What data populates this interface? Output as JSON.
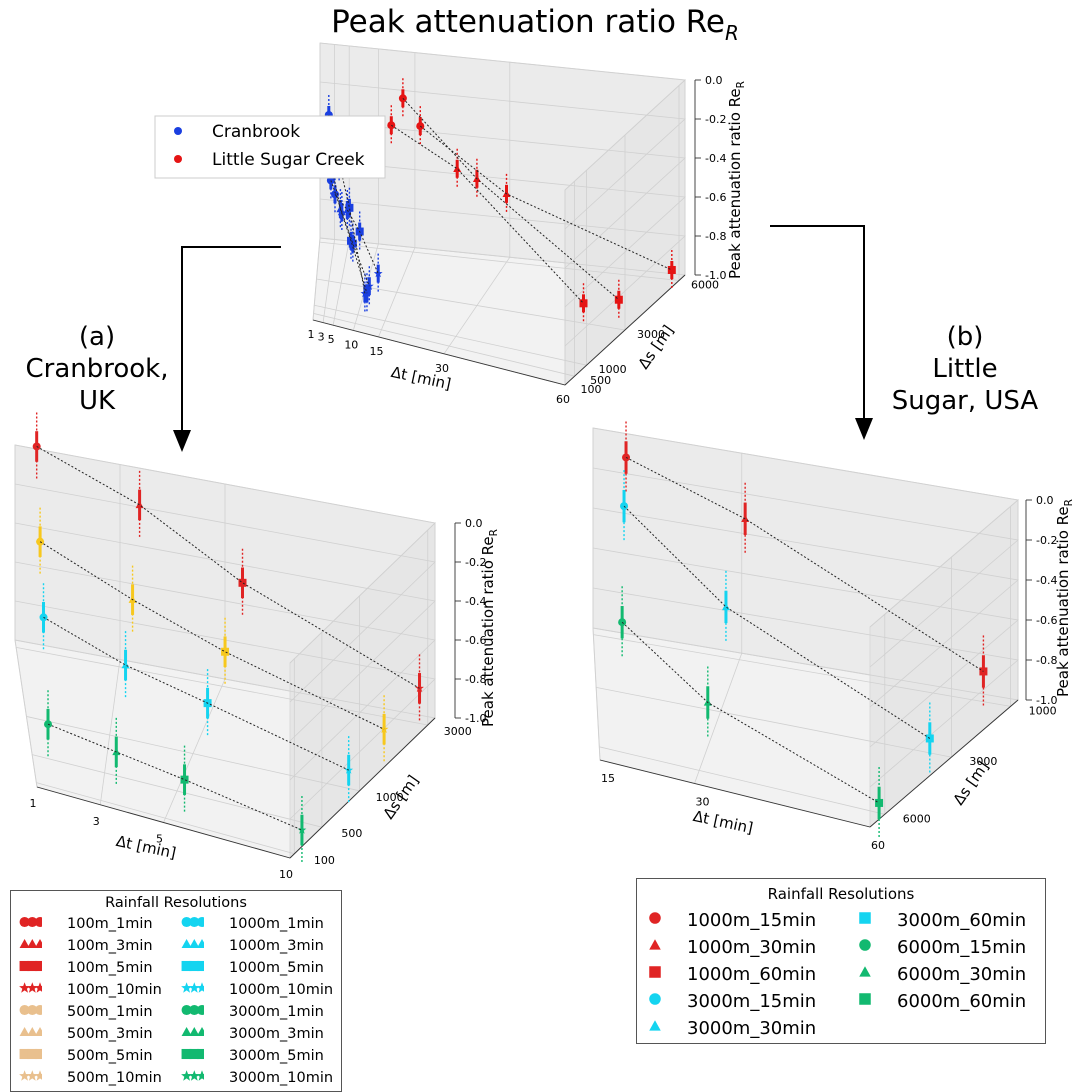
{
  "figure_title": "Peak attenuation ratio Re",
  "figure_title_sub": "R",
  "panel_labels": {
    "a": [
      "(a)",
      "Cranbrook,",
      "UK"
    ],
    "b": [
      "(b)",
      "Little",
      "Sugar, USA"
    ]
  },
  "colors": {
    "cranbrook": "#1a3fe0",
    "little_sugar": "#e51414",
    "res_100m": "#e02424",
    "res_500m": "#e9c08e",
    "res_1000m": "#14d4f0",
    "res_3000m": "#12b970",
    "res_3000m_b": "#14d4f0",
    "res_6000m": "#12b970",
    "yellow_500m": "#f7c81e"
  },
  "chart_data": [
    {
      "id": "top",
      "type": "scatter",
      "title": "Peak attenuation ratio Re_R",
      "xlabel": "Δt [min]",
      "ylabel": "Δs [m]",
      "zlabel": "Peak attenuation ratio Re_R",
      "x_ticks": [
        "1",
        "3",
        "5",
        "10",
        "15",
        "30",
        "60"
      ],
      "y_ticks": [
        "100",
        "500",
        "1000",
        "3000",
        "6000"
      ],
      "z_ticks": [
        "0.0",
        "-0.2",
        "-0.4",
        "-0.6",
        "-0.8",
        "-1.0"
      ],
      "zlim": [
        -1.0,
        0.0
      ],
      "legend": [
        "Cranbrook",
        "Little Sugar Creek"
      ],
      "series": [
        {
          "name": "Cranbrook",
          "points": [
            {
              "x": 1,
              "y": 100,
              "z": 0.05,
              "m": "o"
            },
            {
              "x": 3,
              "y": 100,
              "z": -0.18,
              "m": "^"
            },
            {
              "x": 5,
              "y": 100,
              "z": -0.4,
              "m": "s"
            },
            {
              "x": 10,
              "y": 100,
              "z": -0.82,
              "m": "*"
            },
            {
              "x": 1,
              "y": 500,
              "z": -0.2,
              "m": "o"
            },
            {
              "x": 3,
              "y": 500,
              "z": -0.45,
              "m": "^"
            },
            {
              "x": 5,
              "y": 500,
              "z": -0.6,
              "m": "s"
            },
            {
              "x": 10,
              "y": 500,
              "z": -0.85,
              "m": "*"
            },
            {
              "x": 1,
              "y": 1000,
              "z": -0.35,
              "m": "o"
            },
            {
              "x": 3,
              "y": 1000,
              "z": -0.5,
              "m": "^"
            },
            {
              "x": 5,
              "y": 1000,
              "z": -0.65,
              "m": "s"
            },
            {
              "x": 10,
              "y": 1000,
              "z": -0.85,
              "m": "*"
            },
            {
              "x": 1,
              "y": 3000,
              "z": -0.55,
              "m": "o"
            },
            {
              "x": 3,
              "y": 3000,
              "z": -0.62,
              "m": "^"
            },
            {
              "x": 5,
              "y": 3000,
              "z": -0.72,
              "m": "s"
            },
            {
              "x": 10,
              "y": 3000,
              "z": -0.92,
              "m": "*"
            }
          ]
        },
        {
          "name": "Little Sugar Creek",
          "points": [
            {
              "x": 15,
              "y": 1000,
              "z": 0.0,
              "m": "o"
            },
            {
              "x": 30,
              "y": 1000,
              "z": -0.15,
              "m": "^"
            },
            {
              "x": 60,
              "y": 1000,
              "z": -0.7,
              "m": "s"
            },
            {
              "x": 15,
              "y": 3000,
              "z": 0.0,
              "m": "o"
            },
            {
              "x": 30,
              "y": 3000,
              "z": -0.35,
              "m": "^"
            },
            {
              "x": 60,
              "y": 3000,
              "z": -0.85,
              "m": "s"
            },
            {
              "x": 15,
              "y": 6000,
              "z": -0.35,
              "m": "o"
            },
            {
              "x": 30,
              "y": 6000,
              "z": -0.65,
              "m": "^"
            },
            {
              "x": 60,
              "y": 6000,
              "z": -0.95,
              "m": "s"
            }
          ]
        }
      ]
    },
    {
      "id": "a",
      "type": "scatter",
      "xlabel": "Δt [min]",
      "ylabel": "Δs [m]",
      "zlabel": "Peak attenuation ratio Re_R",
      "x_ticks": [
        "1",
        "3",
        "5",
        "10"
      ],
      "y_ticks": [
        "100",
        "500",
        "1000",
        "3000"
      ],
      "z_ticks": [
        "0.0",
        "-0.2",
        "-0.4",
        "-0.6",
        "-0.8",
        "-1.0"
      ],
      "zlim": [
        -1.0,
        0.0
      ],
      "points": [
        {
          "res": "100m",
          "x": 1,
          "y": 100,
          "z": 0.05,
          "m": "o"
        },
        {
          "res": "100m",
          "x": 3,
          "y": 100,
          "z": -0.15,
          "m": "^"
        },
        {
          "res": "100m",
          "x": 5,
          "y": 100,
          "z": -0.45,
          "m": "s"
        },
        {
          "res": "100m",
          "x": 10,
          "y": 100,
          "z": -0.82,
          "m": "*"
        },
        {
          "res": "500m",
          "x": 1,
          "y": 500,
          "z": -0.25,
          "m": "o"
        },
        {
          "res": "500m",
          "x": 3,
          "y": 500,
          "z": -0.45,
          "m": "^"
        },
        {
          "res": "500m",
          "x": 5,
          "y": 500,
          "z": -0.62,
          "m": "s"
        },
        {
          "res": "500m",
          "x": 10,
          "y": 500,
          "z": -0.85,
          "m": "*"
        },
        {
          "res": "1000m",
          "x": 1,
          "y": 1000,
          "z": -0.45,
          "m": "o"
        },
        {
          "res": "1000m",
          "x": 3,
          "y": 1000,
          "z": -0.6,
          "m": "^"
        },
        {
          "res": "1000m",
          "x": 5,
          "y": 1000,
          "z": -0.7,
          "m": "s"
        },
        {
          "res": "1000m",
          "x": 10,
          "y": 1000,
          "z": -0.88,
          "m": "*"
        },
        {
          "res": "3000m",
          "x": 1,
          "y": 3000,
          "z": -0.75,
          "m": "o"
        },
        {
          "res": "3000m",
          "x": 3,
          "y": 3000,
          "z": -0.8,
          "m": "^"
        },
        {
          "res": "3000m",
          "x": 5,
          "y": 3000,
          "z": -0.85,
          "m": "s"
        },
        {
          "res": "3000m",
          "x": 10,
          "y": 3000,
          "z": -0.95,
          "m": "*"
        }
      ]
    },
    {
      "id": "b",
      "type": "scatter",
      "xlabel": "Δt [min]",
      "ylabel": "Δs [m]",
      "zlabel": "Peak attenuation ratio Re_R",
      "x_ticks": [
        "15",
        "30",
        "60"
      ],
      "y_ticks": [
        "1000",
        "3000",
        "6000"
      ],
      "z_ticks": [
        "0.0",
        "-0.2",
        "-0.4",
        "-0.6",
        "-0.8",
        "-1.0"
      ],
      "zlim": [
        -1.0,
        0.0
      ],
      "points": [
        {
          "res": "1000m",
          "x": 15,
          "y": 1000,
          "z": 0.0,
          "m": "o"
        },
        {
          "res": "1000m",
          "x": 30,
          "y": 1000,
          "z": -0.2,
          "m": "^"
        },
        {
          "res": "1000m",
          "x": 60,
          "y": 1000,
          "z": -0.75,
          "m": "s"
        },
        {
          "res": "3000m",
          "x": 15,
          "y": 3000,
          "z": 0.0,
          "m": "o"
        },
        {
          "res": "3000m",
          "x": 30,
          "y": 3000,
          "z": -0.4,
          "m": "^"
        },
        {
          "res": "3000m",
          "x": 60,
          "y": 3000,
          "z": -0.85,
          "m": "s"
        },
        {
          "res": "6000m",
          "x": 15,
          "y": 6000,
          "z": -0.35,
          "m": "o"
        },
        {
          "res": "6000m",
          "x": 30,
          "y": 6000,
          "z": -0.65,
          "m": "^"
        },
        {
          "res": "6000m",
          "x": 60,
          "y": 6000,
          "z": -0.95,
          "m": "s"
        }
      ]
    }
  ],
  "legend_left": {
    "title": "Rainfall Resolutions",
    "items": [
      {
        "label": "100m_1min",
        "marker": "o",
        "color": "#e02424"
      },
      {
        "label": "1000m_1min",
        "marker": "o",
        "color": "#14d4f0"
      },
      {
        "label": "100m_3min",
        "marker": "^",
        "color": "#e02424"
      },
      {
        "label": "1000m_3min",
        "marker": "^",
        "color": "#14d4f0"
      },
      {
        "label": "100m_5min",
        "marker": "s",
        "color": "#e02424"
      },
      {
        "label": "1000m_5min",
        "marker": "s",
        "color": "#14d4f0"
      },
      {
        "label": "100m_10min",
        "marker": "*",
        "color": "#e02424"
      },
      {
        "label": "1000m_10min",
        "marker": "*",
        "color": "#14d4f0"
      },
      {
        "label": "500m_1min",
        "marker": "o",
        "color": "#e9c08e"
      },
      {
        "label": "3000m_1min",
        "marker": "o",
        "color": "#12b970"
      },
      {
        "label": "500m_3min",
        "marker": "^",
        "color": "#e9c08e"
      },
      {
        "label": "3000m_3min",
        "marker": "^",
        "color": "#12b970"
      },
      {
        "label": "500m_5min",
        "marker": "s",
        "color": "#e9c08e"
      },
      {
        "label": "3000m_5min",
        "marker": "s",
        "color": "#12b970"
      },
      {
        "label": "500m_10min",
        "marker": "*",
        "color": "#e9c08e"
      },
      {
        "label": "3000m_10min",
        "marker": "*",
        "color": "#12b970"
      }
    ]
  },
  "legend_right": {
    "title": "Rainfall Resolutions",
    "items": [
      {
        "label": "1000m_15min",
        "marker": "o",
        "color": "#e02424"
      },
      {
        "label": "1000m_30min",
        "marker": "^",
        "color": "#e02424"
      },
      {
        "label": "1000m_60min",
        "marker": "s",
        "color": "#e02424"
      },
      {
        "label": "3000m_15min",
        "marker": "o",
        "color": "#14d4f0"
      },
      {
        "label": "3000m_30min",
        "marker": "^",
        "color": "#14d4f0"
      },
      {
        "label": "3000m_60min",
        "marker": "s",
        "color": "#14d4f0"
      },
      {
        "label": "6000m_15min",
        "marker": "o",
        "color": "#12b970"
      },
      {
        "label": "6000m_30min",
        "marker": "^",
        "color": "#12b970"
      },
      {
        "label": "6000m_60min",
        "marker": "s",
        "color": "#12b970"
      }
    ]
  }
}
